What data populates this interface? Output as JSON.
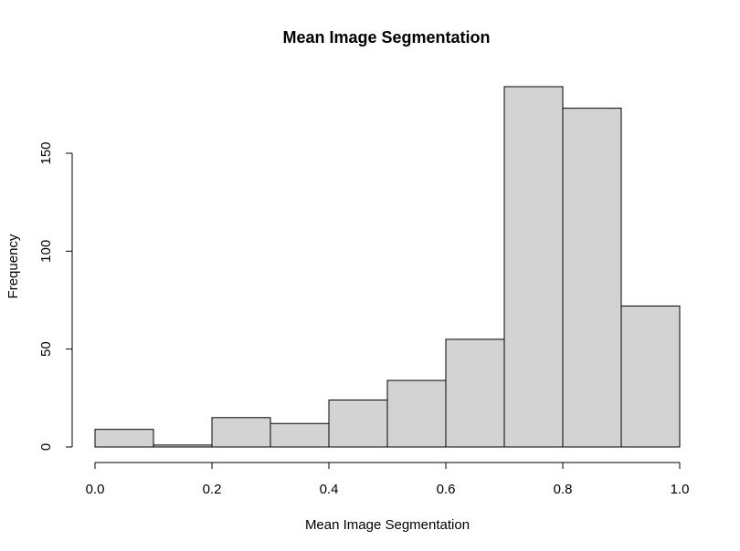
{
  "chart_data": {
    "type": "bar",
    "title": "Mean Image Segmentation",
    "xlabel": "Mean Image Segmentation",
    "ylabel": "Frequency",
    "bins": [
      {
        "from": 0.0,
        "to": 0.1,
        "count": 9
      },
      {
        "from": 0.1,
        "to": 0.2,
        "count": 1
      },
      {
        "from": 0.2,
        "to": 0.3,
        "count": 15
      },
      {
        "from": 0.3,
        "to": 0.4,
        "count": 12
      },
      {
        "from": 0.4,
        "to": 0.5,
        "count": 24
      },
      {
        "from": 0.5,
        "to": 0.6,
        "count": 34
      },
      {
        "from": 0.6,
        "to": 0.7,
        "count": 55
      },
      {
        "from": 0.7,
        "to": 0.8,
        "count": 184
      },
      {
        "from": 0.8,
        "to": 0.9,
        "count": 173
      },
      {
        "from": 0.9,
        "to": 1.0,
        "count": 72
      }
    ],
    "xlim": [
      0,
      1
    ],
    "ylim": [
      0,
      184
    ],
    "x_ticks": [
      {
        "value": 0.0,
        "label": "0.0"
      },
      {
        "value": 0.2,
        "label": "0.2"
      },
      {
        "value": 0.4,
        "label": "0.4"
      },
      {
        "value": 0.6,
        "label": "0.6"
      },
      {
        "value": 0.8,
        "label": "0.8"
      },
      {
        "value": 1.0,
        "label": "1.0"
      }
    ],
    "y_ticks": [
      {
        "value": 0,
        "label": "0"
      },
      {
        "value": 50,
        "label": "50"
      },
      {
        "value": 100,
        "label": "100"
      },
      {
        "value": 150,
        "label": "150"
      }
    ],
    "grid": false,
    "legend": "none",
    "colors": {
      "bar_fill": "#d3d3d3",
      "bar_stroke": "#000000"
    }
  }
}
